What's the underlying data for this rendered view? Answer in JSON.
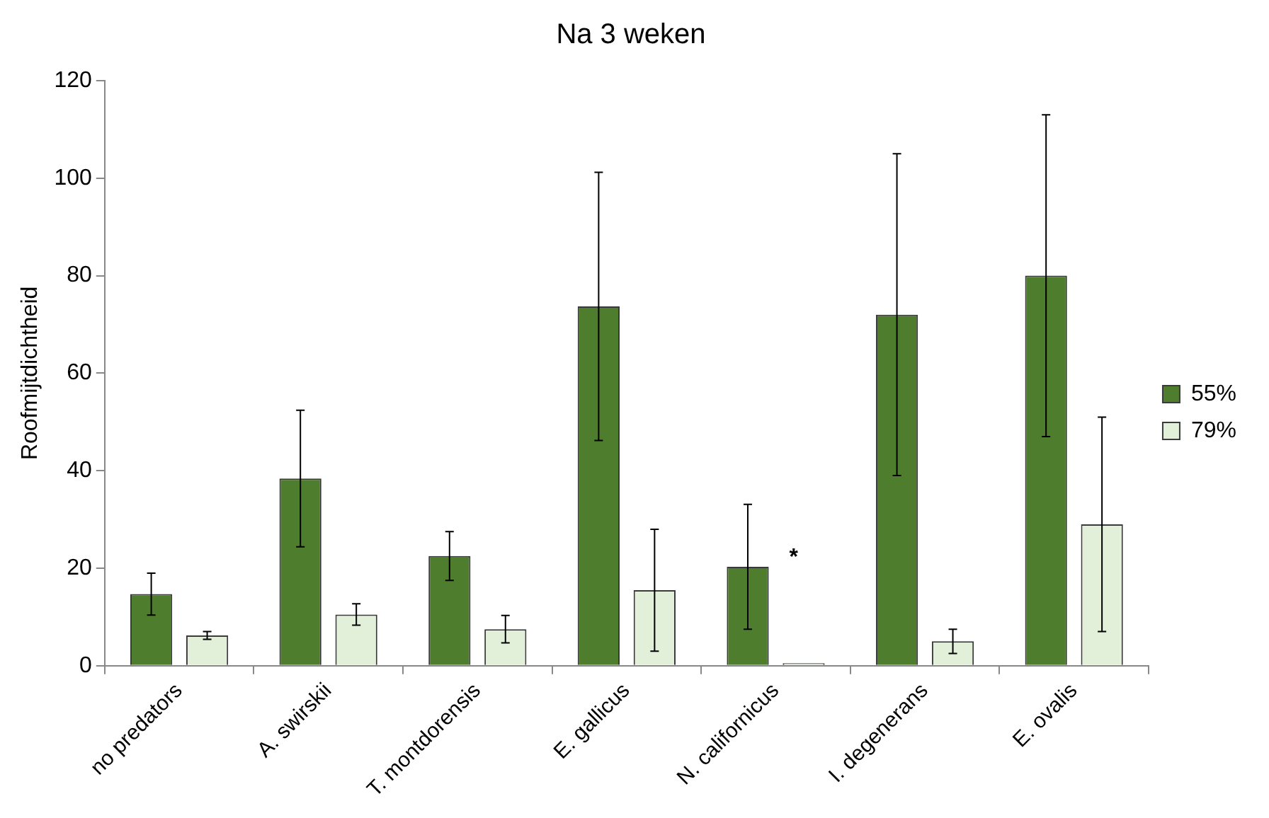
{
  "chart_data": {
    "type": "bar",
    "title": "Na 3 weken",
    "ylabel": "Roofmijtdichtheid",
    "categories": [
      "no predators",
      "A. swirskii",
      "T. montdorensis",
      "E. gallicus",
      "N. californicus",
      "I. degenerans",
      "E. ovalis"
    ],
    "series": [
      {
        "name": "55%",
        "color": "#4f7d2e",
        "values": [
          14.7,
          38.4,
          22.5,
          73.7,
          20.3,
          72,
          80
        ],
        "errors": [
          4.3,
          14,
          5,
          27.5,
          12.8,
          33,
          33
        ]
      },
      {
        "name": "79%",
        "color": "#e2efd9",
        "values": [
          6.2,
          10.5,
          7.5,
          15.5,
          0.5,
          5,
          29
        ],
        "errors": [
          0.8,
          2.2,
          2.8,
          12.5,
          null,
          2.5,
          22
        ]
      }
    ],
    "ylim": [
      0,
      120
    ],
    "yticks": [
      0,
      20,
      40,
      60,
      80,
      100,
      120
    ],
    "grid": false,
    "legend": "right",
    "annotations": [
      "*"
    ]
  }
}
